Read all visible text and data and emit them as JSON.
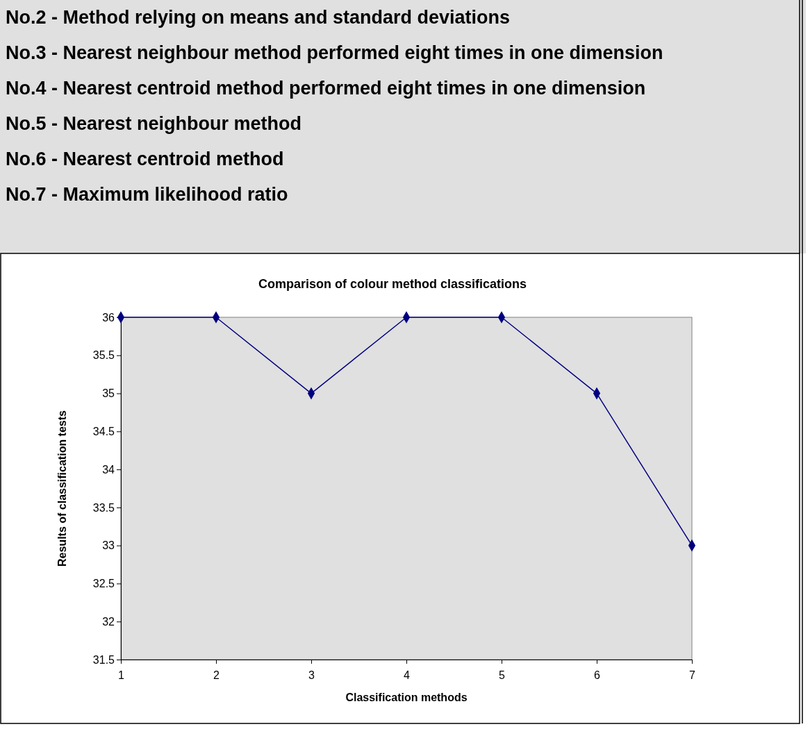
{
  "chart_data": {
    "type": "line",
    "title": "Comparison of colour method classifications",
    "xlabel": "Classification methods",
    "ylabel": "Results of classification tests",
    "annotations": [
      "No.2 - Method relying on means and standard deviations",
      "No.3 - Nearest neighbour method performed eight times in one dimension",
      "No.4 - Nearest centroid method performed eight times in one dimension",
      "No.5 - Nearest neighbour method",
      "No.6 - Nearest centroid method",
      "No.7 - Maximum likelihood ratio"
    ],
    "x": [
      1,
      2,
      3,
      4,
      5,
      6,
      7
    ],
    "series": [
      {
        "color": "#000080",
        "values": [
          36,
          36,
          35,
          36,
          36,
          35,
          33
        ]
      }
    ],
    "xlim": [
      1,
      7
    ],
    "xticks": [
      1,
      2,
      3,
      4,
      5,
      6,
      7
    ],
    "ylim": [
      31.5,
      36
    ],
    "yticks": [
      31.5,
      32,
      32.5,
      33,
      33.5,
      34,
      34.5,
      35,
      35.5,
      36
    ],
    "grid": false,
    "legend": false,
    "marker": "diamond",
    "line_style": "solid"
  }
}
